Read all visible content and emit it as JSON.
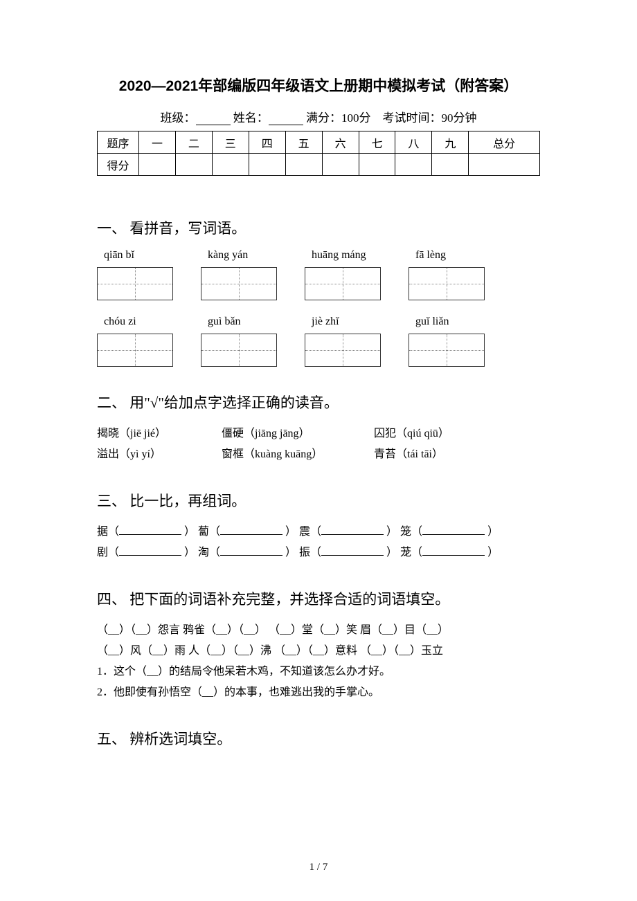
{
  "title": "2020—2021年部编版四年级语文上册期中模拟考试（附答案）",
  "meta": {
    "class_label": "班级：",
    "name_label": "姓名：",
    "full_score": "满分：100分",
    "exam_time": "考试时间：90分钟"
  },
  "score_table": {
    "row1": [
      "题序",
      "一",
      "二",
      "三",
      "四",
      "五",
      "六",
      "七",
      "八",
      "九",
      "总分"
    ],
    "row2_label": "得分"
  },
  "sections": {
    "s1": {
      "heading": "一、 看拼音，写词语。"
    },
    "s2": {
      "heading": "二、 用\"√\"给加点字选择正确的读音。"
    },
    "s3": {
      "heading": "三、 比一比，再组词。"
    },
    "s4": {
      "heading": "四、 把下面的词语补充完整，并选择合适的词语填空。"
    },
    "s5": {
      "heading": "五、 辨析选词填空。"
    }
  },
  "pinyin": {
    "row1": [
      "qiān bǐ",
      "kàng yán",
      "huāng máng",
      "fā lèng"
    ],
    "row2": [
      "chóu zi",
      "guì bǎn",
      "jiè zhǐ",
      "guǐ liǎn"
    ]
  },
  "q2": {
    "r1c1": "揭晓（jiē jié）",
    "r1c2": "僵硬（jiāng jāng）",
    "r1c3": "囚犯（qiú qiū）",
    "r2c1": "溢出（yì yí）",
    "r2c2": "窗框（kuàng kuāng）",
    "r2c3": "青苔（tái tāi）"
  },
  "q3": {
    "r1": [
      "据（",
      "） 蔔（",
      "） 震（",
      "） 笼（",
      "）"
    ],
    "r2": [
      "剧（",
      "） 淘（",
      "） 振（",
      "） 茏（",
      "）"
    ]
  },
  "q4": {
    "l1": "（__）（__）怨言  鸦雀（__）（__） （__）堂（__）笑   眉（__）目（__）",
    "l2": "（__）风（__）雨  人（__）（__）沸  （__）（__）意料   （__）（__）玉立",
    "l3": "1．这个（__）的结局令他呆若木鸡，不知道该怎么办才好。",
    "l4": "2．他即使有孙悟空（__）的本事，也难逃出我的手掌心。"
  },
  "page_num": "1 / 7",
  "colors": {
    "text": "#000000",
    "bg": "#ffffff",
    "dotted": "#888888"
  }
}
